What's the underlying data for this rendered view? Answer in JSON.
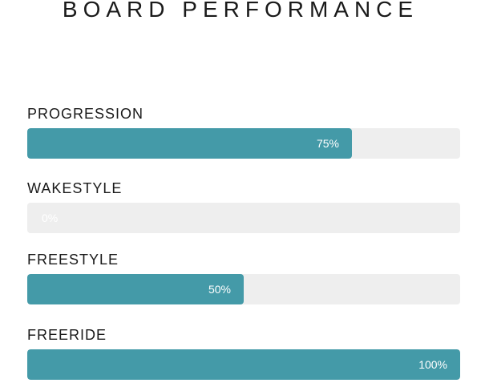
{
  "title": "BOARD PERFORMANCE",
  "colors": {
    "accent_teal": "#449aa8",
    "track_gray": "#eeeeee",
    "label_text": "#1a1a1a",
    "value_text": "#ffffff",
    "background": "#ffffff"
  },
  "chart_data": {
    "type": "bar",
    "orientation": "horizontal",
    "title": "BOARD PERFORMANCE",
    "categories": [
      "PROGRESSION",
      "WAKESTYLE",
      "FREESTYLE",
      "FREERIDE"
    ],
    "values": [
      75,
      0,
      50,
      100
    ],
    "value_labels": [
      "75%",
      "0%",
      "50%",
      "100%"
    ],
    "xlim": [
      0,
      100
    ],
    "grid": false,
    "legend": false
  },
  "bars": [
    {
      "label": "PROGRESSION",
      "percent": 75,
      "value_label": "75%"
    },
    {
      "label": "WAKESTYLE",
      "percent": 0,
      "value_label": "0%"
    },
    {
      "label": "FREESTYLE",
      "percent": 50,
      "value_label": "50%"
    },
    {
      "label": "FREERIDE",
      "percent": 100,
      "value_label": "100%"
    }
  ]
}
